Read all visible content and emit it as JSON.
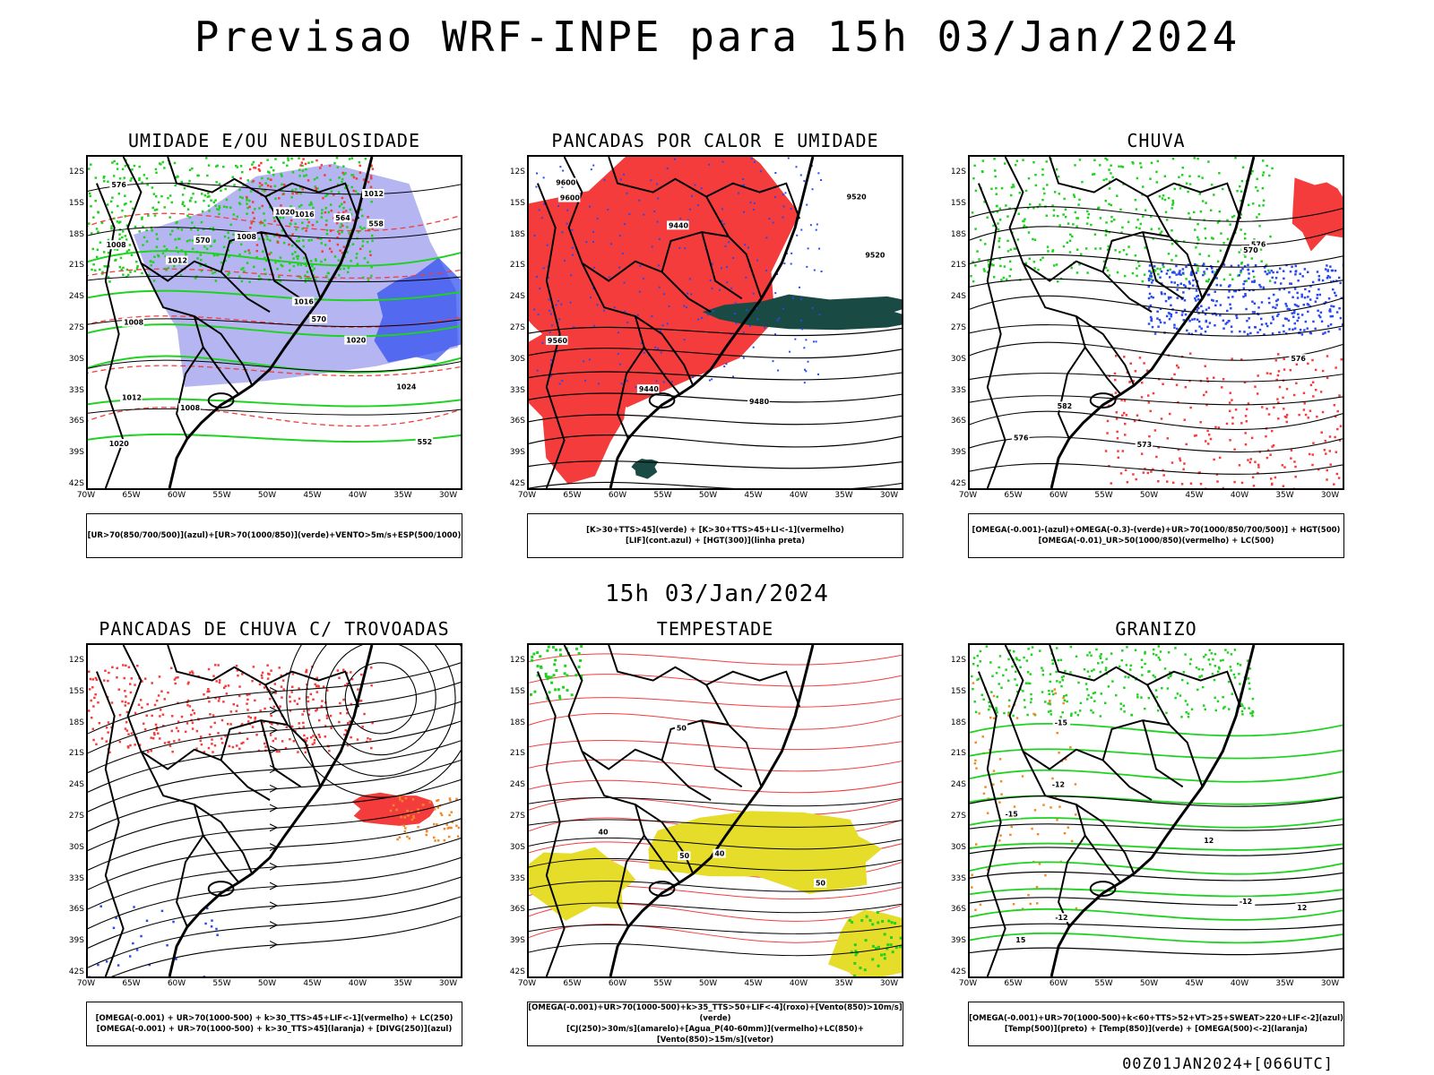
{
  "header": {
    "title": "Previsao WRF-INPE  para 15h 03/Jan/2024"
  },
  "row_time": "15h 03/Jan/2024",
  "footer": "00Z01JAN2024+[066UTC]",
  "axes": {
    "lat_labels": [
      "12S",
      "15S",
      "18S",
      "21S",
      "24S",
      "27S",
      "30S",
      "33S",
      "36S",
      "39S",
      "42S"
    ],
    "lon_labels": [
      "70W",
      "65W",
      "60W",
      "55W",
      "50W",
      "45W",
      "40W",
      "35W",
      "30W"
    ]
  },
  "colors": {
    "red": "#f43c3c",
    "green": "#1fd21f",
    "blue": "#2848f0",
    "lavender": "#a8a8f0",
    "yellow": "#e6dc2a",
    "orange": "#f08a28",
    "darkgreen": "#1a4a44",
    "black": "#000000"
  },
  "panels": [
    {
      "id": "umidade",
      "title": "UMIDADE E/OU NEBULOSIDADE",
      "legend": [
        "[UR>70(850/700/500)](azul)+[UR>70(1000/850)](verde)+VENTO>5m/s+ESP(500/1000)"
      ],
      "contour_labels": [
        "1008",
        "1008",
        "1008",
        "1008",
        "1012",
        "1012",
        "1012",
        "1016",
        "1016",
        "1020",
        "1020",
        "1020",
        "1024",
        "576",
        "570",
        "570",
        "564",
        "558",
        "552"
      ]
    },
    {
      "id": "pancadas-calor",
      "title": "PANCADAS POR CALOR E UMIDADE",
      "legend": [
        "[K>30+TTS>45](verde) + [K>30+TTS>45+LI<-1](vermelho)",
        "[LIF](cont.azul) + [HGT(300)](linha preta)"
      ],
      "contour_labels": [
        "9600",
        "9600",
        "9560",
        "9520",
        "9520",
        "9480",
        "9440",
        "9440"
      ]
    },
    {
      "id": "chuva",
      "title": "CHUVA",
      "legend": [
        "[OMEGA(-0.001)-(azul)+OMEGA(-0.3)-(verde)+UR>70(1000/850/700/500)] + HGT(500)",
        "[OMEGA(-0.01)_UR>50(1000/850)(vermelho) + LC(500)"
      ],
      "contour_labels": [
        "576",
        "576",
        "576",
        "573",
        "570",
        "582"
      ]
    },
    {
      "id": "pancadas-trovoadas",
      "title": "PANCADAS DE CHUVA C/ TROVOADAS",
      "legend": [
        "[OMEGA(-0.001) + UR>70(1000-500) + k>30_TTS>45+LIF<-1](vermelho) + LC(250)",
        "[OMEGA(-0.001) + UR>70(1000-500) + k>30_TTS>45](laranja) + [DIVG(250)](azul)"
      ],
      "contour_labels": []
    },
    {
      "id": "tempestade",
      "title": "TEMPESTADE",
      "legend": [
        "[OMEGA(-0.001)+UR>70(1000-500)+k>35_TTS>50+LIF<-4](roxo)+[Vento(850)>10m/s](verde)",
        "[CJ(250)>30m/s](amarelo)+[Agua_P(40-60mm)](vermelho)+LC(850)+[Vento(850)>15m/s](vetor)"
      ],
      "contour_labels": [
        "40",
        "50",
        "50",
        "40",
        "50"
      ]
    },
    {
      "id": "granizo",
      "title": "GRANIZO",
      "legend": [
        "[OMEGA(-0.001)+UR>70(1000-500)+k<60+TTS>52+VT>25+SWEAT>220+LIF<-2](azul)",
        "[Temp(500)](preto) + [Temp(850)](verde) + [OMEGA(500)<-2](laranja)"
      ],
      "contour_labels": [
        "-12",
        "-12",
        "-12",
        "-15",
        "-15",
        "12",
        "12",
        "15"
      ]
    }
  ]
}
